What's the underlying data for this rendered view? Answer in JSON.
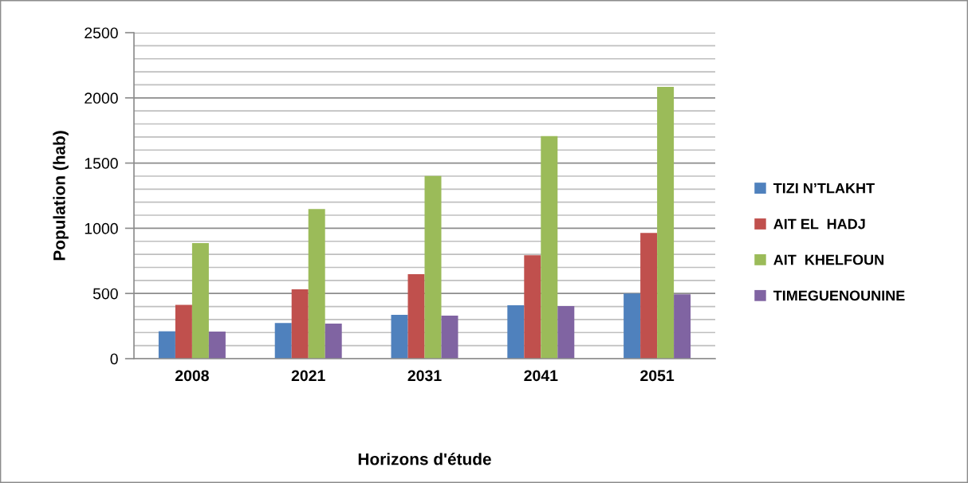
{
  "chart_data": {
    "type": "bar",
    "xlabel": "Horizons d'étude",
    "ylabel": "Population (hab)",
    "categories": [
      "2008",
      "2021",
      "2031",
      "2041",
      "2051"
    ],
    "series": [
      {
        "name": "TIZI N’TLAKHT",
        "color": "#4f81bd",
        "values": [
          210,
          273,
          336,
          410,
          500
        ]
      },
      {
        "name": "AIT EL  HADJ",
        "color": "#c0504d",
        "values": [
          412,
          532,
          648,
          793,
          964
        ]
      },
      {
        "name": "AIT  KHELFOUN",
        "color": "#9bbb59",
        "values": [
          887,
          1148,
          1401,
          1707,
          2084
        ]
      },
      {
        "name": "TIMEGUENOUNINE",
        "color": "#8064a2",
        "values": [
          208,
          269,
          330,
          404,
          493
        ]
      }
    ],
    "ylim": [
      0,
      2500
    ],
    "yticks": [
      0,
      {
        "value": 100,
        "label": null
      },
      {
        "value": 200,
        "label": null
      },
      {
        "value": 300,
        "label": null
      },
      {
        "value": 400,
        "label": null
      },
      500,
      {
        "value": 600,
        "label": null
      },
      {
        "value": 700,
        "label": null
      },
      {
        "value": 800,
        "label": null
      },
      {
        "value": 900,
        "label": null
      },
      1000,
      {
        "value": 1100,
        "label": null
      },
      {
        "value": 1200,
        "label": null
      },
      {
        "value": 1300,
        "label": null
      },
      {
        "value": 1400,
        "label": null
      },
      1500,
      {
        "value": 1600,
        "label": null
      },
      {
        "value": 1700,
        "label": null
      },
      {
        "value": 1800,
        "label": null
      },
      {
        "value": 1900,
        "label": null
      },
      2000,
      {
        "value": 2100,
        "label": null
      },
      {
        "value": 2200,
        "label": null
      },
      {
        "value": 2300,
        "label": null
      },
      {
        "value": 2400,
        "label": null
      },
      2500
    ],
    "grid": "y",
    "legend": "right"
  }
}
